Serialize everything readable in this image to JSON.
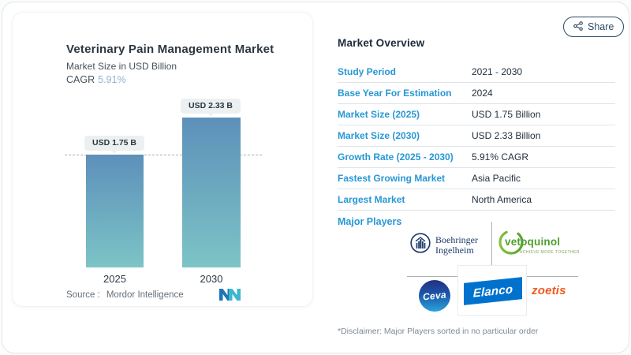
{
  "share": {
    "label": "Share"
  },
  "chart_panel": {
    "title": "Veterinary Pain Management Market",
    "subtitle": "Market Size in USD Billion",
    "cagr_label": "CAGR",
    "cagr_value": "5.91%",
    "source_label": "Source :",
    "source_value": "Mordor Intelligence"
  },
  "chart_data": {
    "type": "bar",
    "title": "Veterinary Pain Management Market",
    "subtitle": "Market Size in USD Billion",
    "categories": [
      "2025",
      "2030"
    ],
    "values": [
      1.75,
      2.33
    ],
    "value_labels": [
      "USD 1.75 B",
      "USD 2.33 B"
    ],
    "unit": "USD Billion",
    "cagr": "5.91%",
    "ylim": [
      0,
      2.6
    ],
    "baseline": {
      "at_value": 1.75,
      "style": "dashed"
    },
    "bar_gradient_top": "#5d90ba",
    "bar_gradient_bottom": "#7cc4c6",
    "grid": "off",
    "legend": "none"
  },
  "overview": {
    "heading": "Market Overview",
    "rows": [
      {
        "label": "Study Period",
        "value": "2021 - 2030"
      },
      {
        "label": "Base Year For Estimation",
        "value": "2024"
      },
      {
        "label": "Market Size (2025)",
        "value": "USD 1.75 Billion"
      },
      {
        "label": "Market Size (2030)",
        "value": "USD 2.33 Billion"
      },
      {
        "label": "Growth Rate (2025 - 2030)",
        "value": "5.91% CAGR"
      },
      {
        "label": "Fastest Growing Market",
        "value": "Asia Pacific"
      },
      {
        "label": "Largest Market",
        "value": "North America"
      }
    ],
    "major_players_label": "Major Players",
    "players": [
      "Boehringer Ingelheim",
      "Vetoquinol",
      "Ceva",
      "Elanco",
      "Zoetis"
    ],
    "disclaimer": "*Disclaimer: Major Players sorted in no particular order"
  },
  "logos": {
    "boehringer": {
      "line1": "Boehringer",
      "line2": "Ingelheim",
      "color": "#1d3a6b"
    },
    "vetoquinol": {
      "name": "vetoquinol",
      "tagline": "ACHIEVE MORE TOGETHER",
      "color": "#4f9e2f"
    },
    "ceva": {
      "name": "Ceva",
      "color": "#1b56a8"
    },
    "elanco": {
      "name": "Elanco",
      "color": "#0072ce"
    },
    "zoetis": {
      "name": "zoetis",
      "color": "#f15a22"
    }
  },
  "colors": {
    "row_label_blue": "#2797d4",
    "heading_navy": "#1b2a3a",
    "cagr_blue": "#8fb3d6",
    "mordor_blue": "#1e74b8",
    "mordor_teal": "#3eb6cf",
    "share_navy": "#2d4a63"
  }
}
